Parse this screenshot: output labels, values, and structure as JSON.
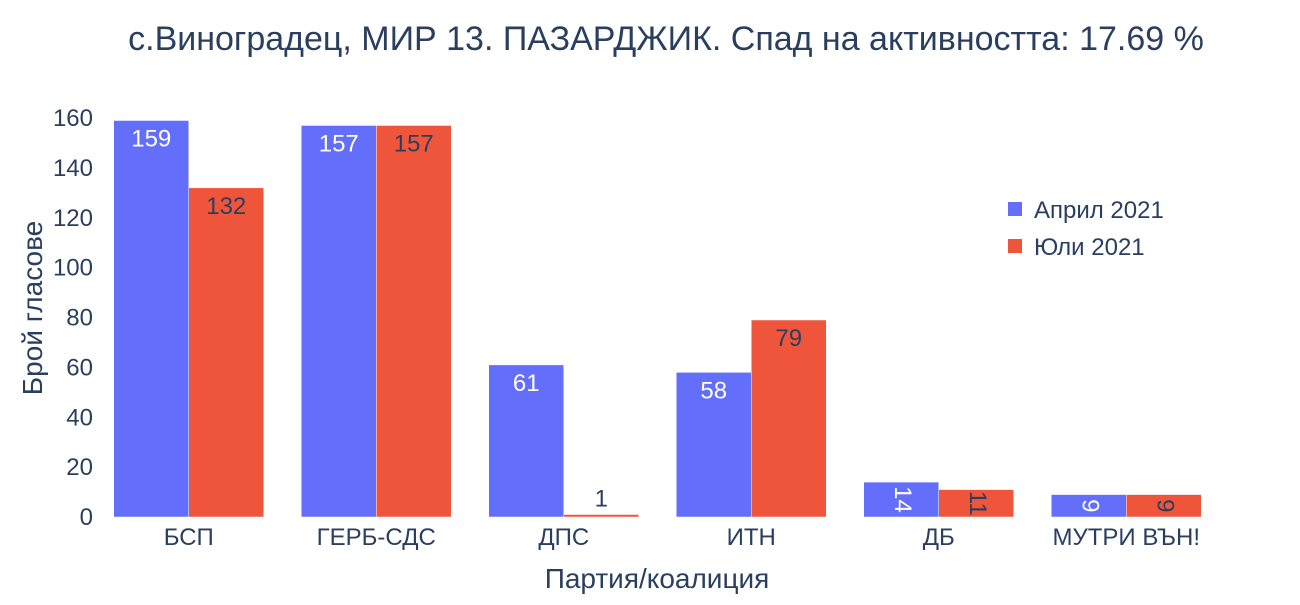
{
  "colors": {
    "background": "#ffffff",
    "text": "#2a3f5f",
    "series_april": "#636efa",
    "series_july": "#ef553b",
    "label_inside_april": "#ffffff",
    "label_inside_july": "#2a3f5f"
  },
  "chart_data": {
    "type": "bar",
    "title": "с.Виноградец, МИР 13. ПАЗАРДЖИК. Спад на активността: 17.69 %",
    "xlabel": "Партия/коалиция",
    "ylabel": "Брой гласове",
    "categories": [
      "БСП",
      "ГЕРБ-СДС",
      "ДПС",
      "ИТН",
      "ДБ",
      "МУТРИ ВЪН!"
    ],
    "series": [
      {
        "name": "Април 2021",
        "values": [
          159,
          157,
          61,
          58,
          14,
          9
        ]
      },
      {
        "name": "Юли 2021",
        "values": [
          132,
          157,
          1,
          79,
          11,
          9
        ]
      }
    ],
    "ylim": [
      0,
      160
    ],
    "yticks": [
      0,
      20,
      40,
      60,
      80,
      100,
      120,
      140,
      160
    ],
    "grid": false,
    "legend_position": "top-right",
    "barmode": "group"
  }
}
